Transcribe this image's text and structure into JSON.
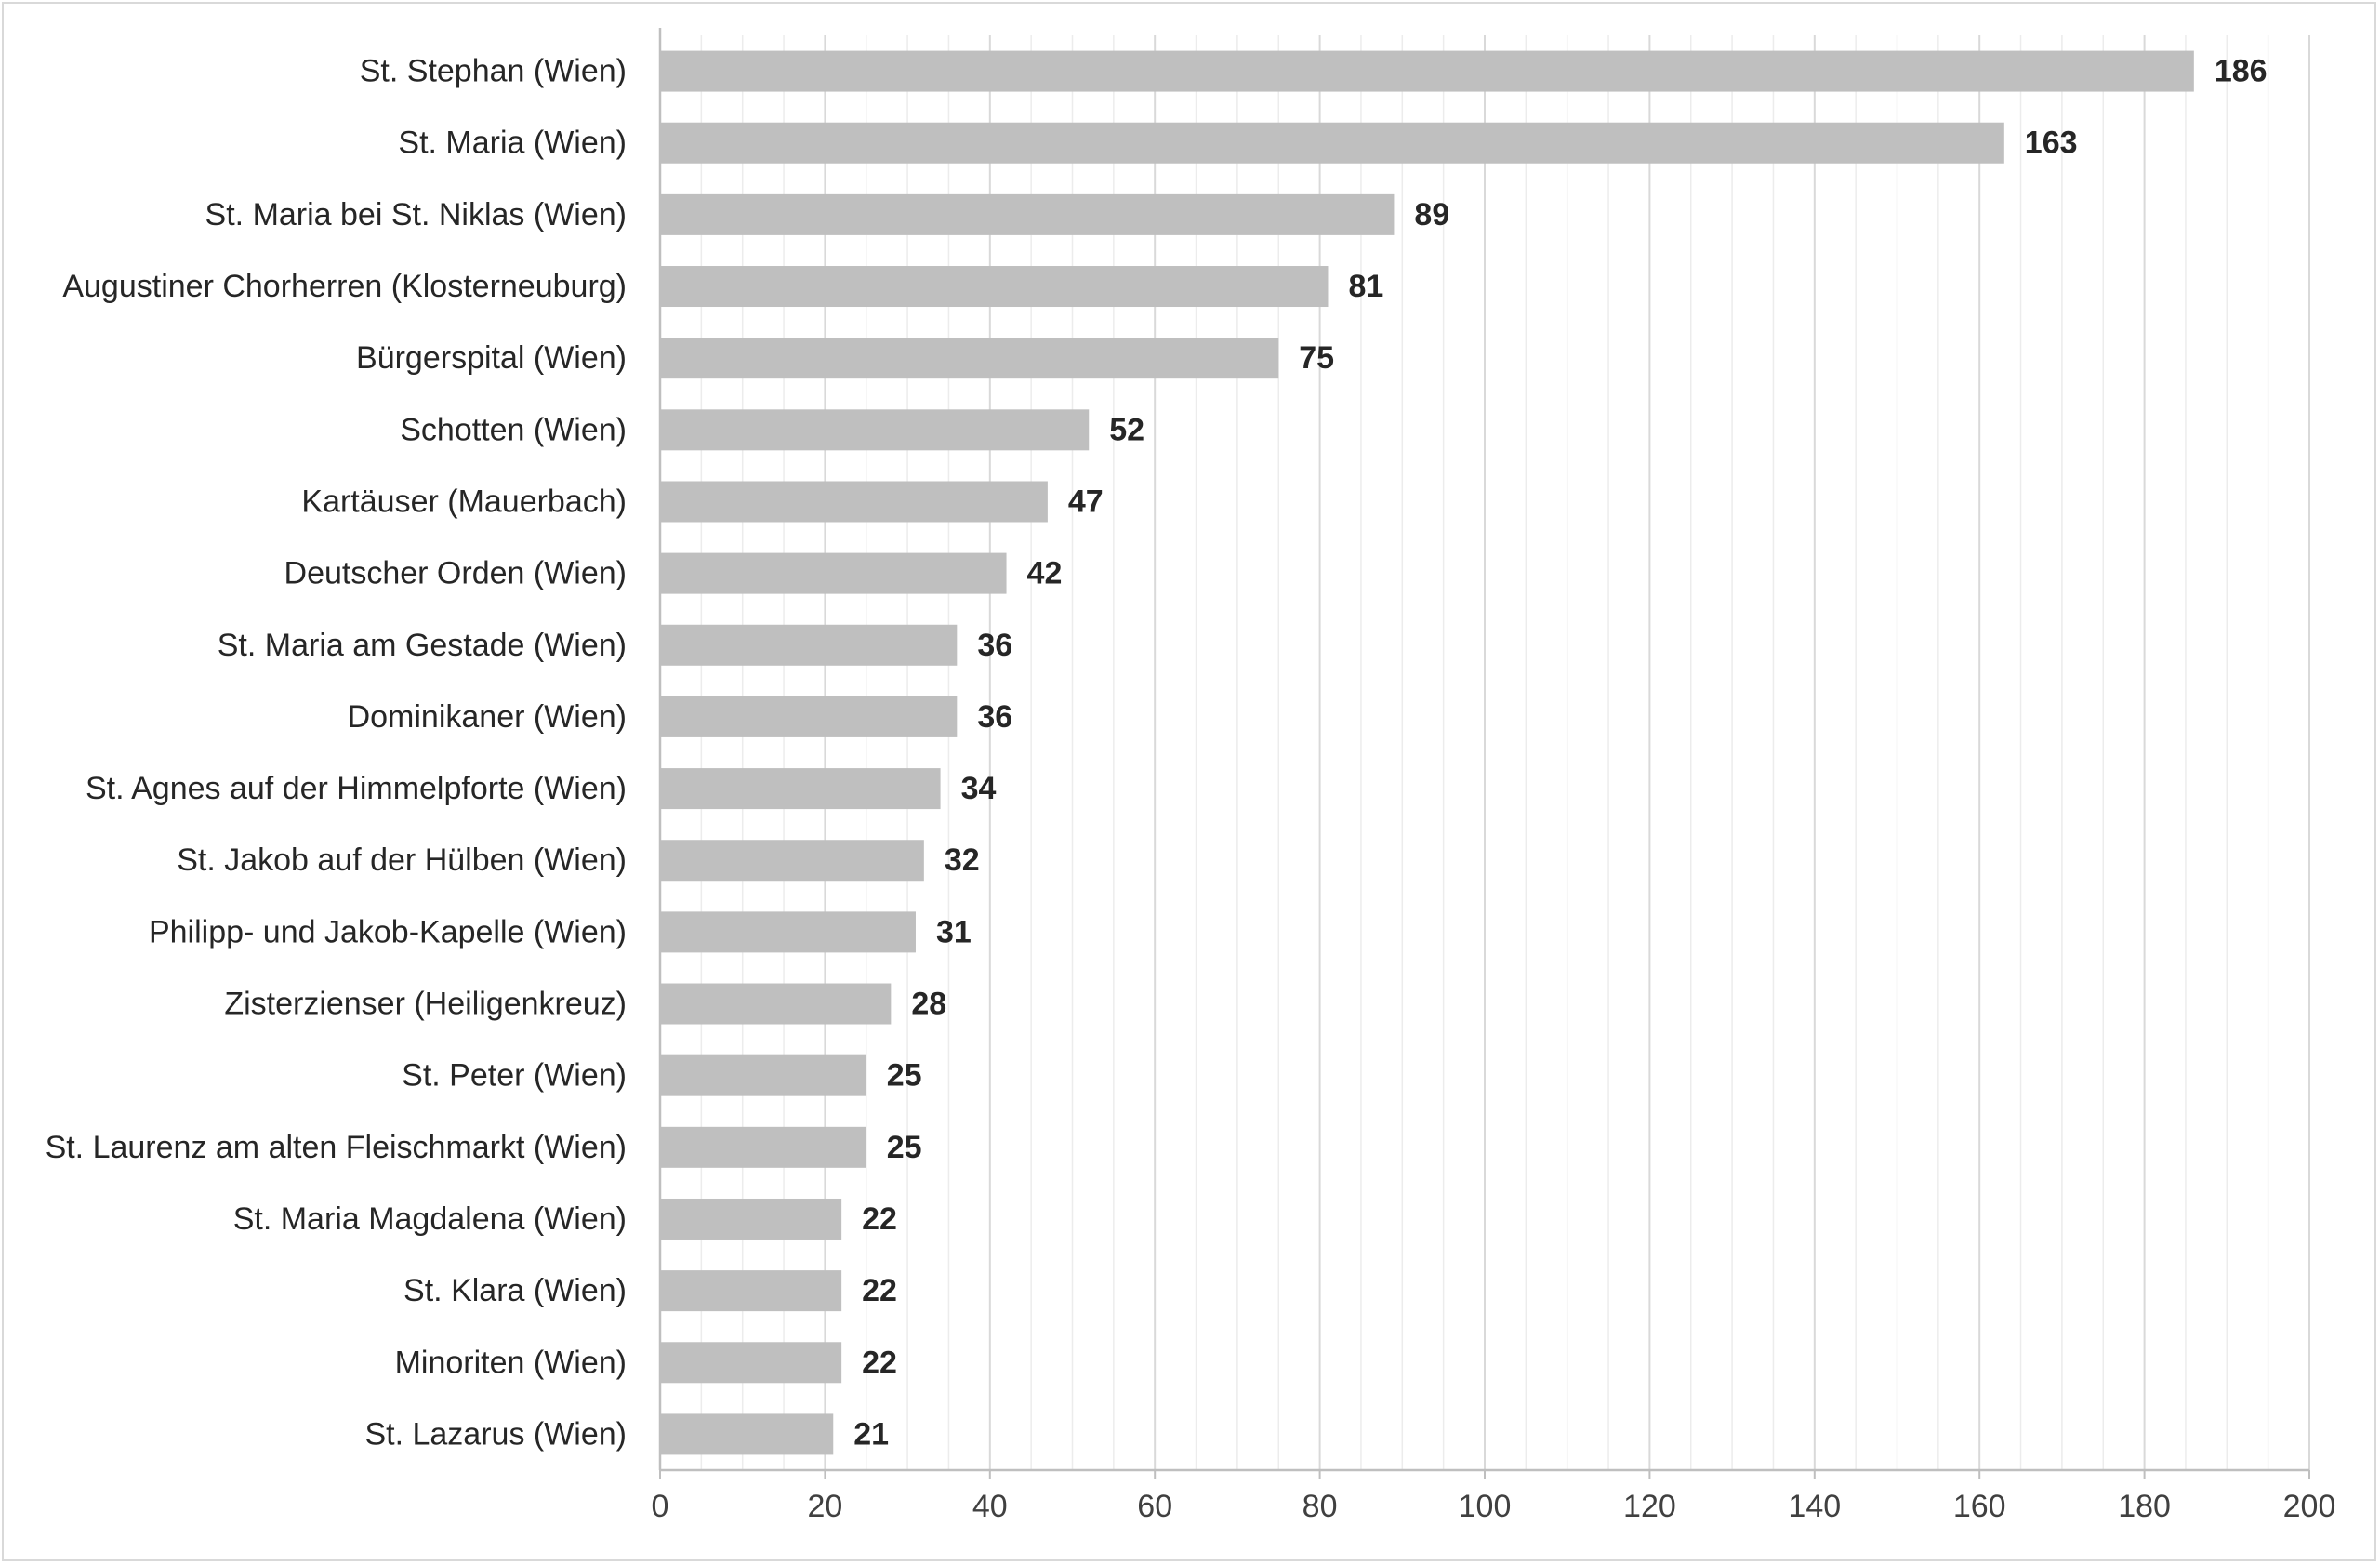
{
  "chart_data": {
    "type": "bar",
    "orientation": "horizontal",
    "title": "",
    "xlabel": "",
    "ylabel": "",
    "categories": [
      "St. Stephan (Wien)",
      "St. Maria (Wien)",
      "St. Maria bei St. Niklas (Wien)",
      "Augustiner Chorherren (Klosterneuburg)",
      "Bürgerspital (Wien)",
      "Schotten (Wien)",
      "Kartäuser (Mauerbach)",
      "Deutscher Orden (Wien)",
      "St. Maria am Gestade (Wien)",
      "Dominikaner (Wien)",
      "St. Agnes auf der Himmelpforte (Wien)",
      "St. Jakob auf der Hülben (Wien)",
      "Philipp- und Jakob-Kapelle (Wien)",
      "Zisterzienser (Heiligenkreuz)",
      "St. Peter (Wien)",
      "St. Laurenz am alten Fleischmarkt (Wien)",
      "St. Maria Magdalena (Wien)",
      "St. Klara (Wien)",
      "Minoriten (Wien)",
      "St. Lazarus (Wien)"
    ],
    "values": [
      186,
      163,
      89,
      81,
      75,
      52,
      47,
      42,
      36,
      36,
      34,
      32,
      31,
      28,
      25,
      25,
      22,
      22,
      22,
      21
    ],
    "xlim": [
      0,
      200
    ],
    "xticks": [
      "0",
      "20",
      "40",
      "60",
      "80",
      "100",
      "120",
      "140",
      "160",
      "180",
      "200"
    ],
    "data_labels": true,
    "grid": "vertical major and minor",
    "legend": "none",
    "colors": {
      "bar": "#bfbfbf",
      "major_grid": "#d9d9d9",
      "minor_grid": "#ececec",
      "axis": "#bfbfbf",
      "text": "#262626"
    }
  }
}
